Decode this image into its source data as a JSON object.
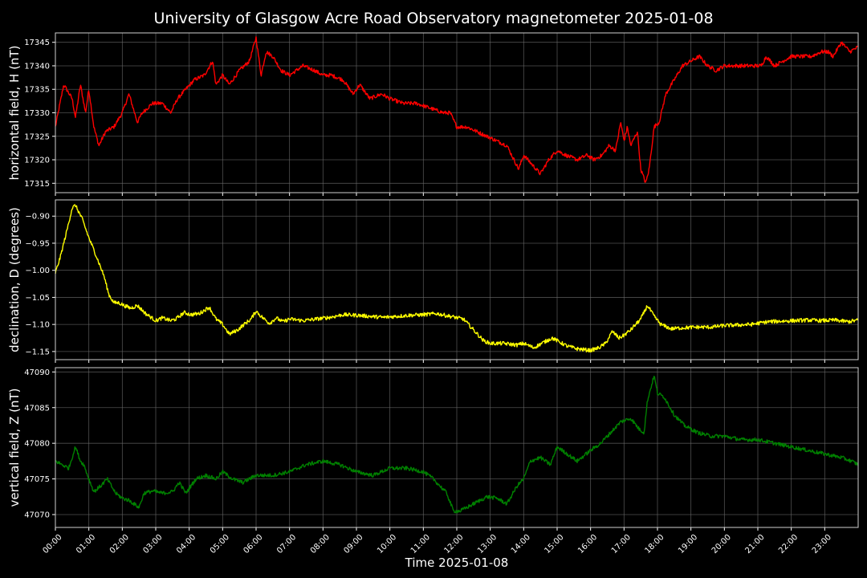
{
  "chart_data": {
    "type": "line",
    "title": "University of Glasgow Acre Road Observatory magnetometer 2025-01-08",
    "xlabel": "Time 2025-01-08",
    "x_unit": "hours",
    "xlim": [
      0,
      24
    ],
    "x_ticks": [
      "00:00",
      "01:00",
      "02:00",
      "03:00",
      "04:00",
      "05:00",
      "06:00",
      "07:00",
      "08:00",
      "09:00",
      "10:00",
      "11:00",
      "12:00",
      "13:00",
      "14:00",
      "15:00",
      "16:00",
      "17:00",
      "18:00",
      "19:00",
      "20:00",
      "21:00",
      "22:00",
      "23:00"
    ],
    "grid": true,
    "background": "#000000",
    "panels": [
      {
        "ylabel": "horizontal field, H (nT)",
        "color": "#ff0000",
        "ylim": [
          17313,
          17347
        ],
        "y_ticks": [
          17315,
          17320,
          17325,
          17330,
          17335,
          17340,
          17345
        ],
        "x": [
          0.0,
          0.25,
          0.5,
          0.6,
          0.75,
          0.9,
          1.0,
          1.15,
          1.3,
          1.5,
          1.75,
          2.0,
          2.2,
          2.45,
          2.6,
          2.9,
          3.2,
          3.45,
          3.65,
          3.9,
          4.15,
          4.45,
          4.7,
          4.8,
          5.0,
          5.2,
          5.5,
          5.8,
          6.0,
          6.15,
          6.3,
          6.5,
          6.75,
          7.0,
          7.4,
          7.75,
          8.0,
          8.25,
          8.6,
          8.9,
          9.1,
          9.4,
          9.75,
          10.0,
          10.4,
          10.8,
          11.2,
          11.6,
          11.8,
          12.0,
          12.3,
          12.6,
          12.9,
          13.2,
          13.5,
          13.85,
          14.0,
          14.25,
          14.5,
          14.75,
          15.0,
          15.25,
          15.6,
          15.9,
          16.1,
          16.35,
          16.55,
          16.75,
          16.9,
          17.0,
          17.1,
          17.2,
          17.4,
          17.5,
          17.65,
          17.75,
          17.9,
          18.05,
          18.25,
          18.5,
          18.75,
          19.0,
          19.25,
          19.5,
          19.75,
          20.0,
          20.3,
          20.6,
          20.9,
          21.1,
          21.25,
          21.5,
          21.75,
          22.0,
          22.3,
          22.6,
          22.9,
          23.1,
          23.25,
          23.5,
          23.75,
          24.0
        ],
        "values": [
          17327,
          17336,
          17333,
          17329,
          17336,
          17330,
          17335,
          17327,
          17323,
          17326,
          17327,
          17330,
          17334,
          17328,
          17330,
          17332,
          17332,
          17330,
          17333,
          17335,
          17337,
          17338,
          17341,
          17336,
          17338,
          17336,
          17339,
          17341,
          17346,
          17338,
          17343,
          17342,
          17339,
          17338,
          17340,
          17339,
          17338,
          17338,
          17337,
          17334,
          17336,
          17333,
          17334,
          17333,
          17332,
          17332,
          17331,
          17330,
          17330,
          17327,
          17327,
          17326,
          17325,
          17324,
          17323,
          17318,
          17321,
          17319,
          17317,
          17320,
          17322,
          17321,
          17320,
          17321,
          17320,
          17321,
          17323,
          17322,
          17328,
          17324,
          17327,
          17323,
          17326,
          17318,
          17315,
          17318,
          17327,
          17328,
          17334,
          17337,
          17340,
          17341,
          17342,
          17340,
          17339,
          17340,
          17340,
          17340,
          17340,
          17340,
          17342,
          17340,
          17341,
          17342,
          17342,
          17342,
          17343,
          17343,
          17342,
          17345,
          17343,
          17344
        ]
      },
      {
        "ylabel": "declination, D (degrees)",
        "color": "#ffff00",
        "ylim": [
          -1.165,
          -0.87
        ],
        "y_ticks": [
          -0.9,
          -0.95,
          -1.0,
          -1.05,
          -1.1,
          -1.15
        ],
        "y_tick_labels": [
          "−0.90",
          "−0.95",
          "−1.00",
          "−1.05",
          "−1.10",
          "−1.15"
        ],
        "x": [
          0.0,
          0.15,
          0.35,
          0.5,
          0.6,
          0.8,
          1.0,
          1.2,
          1.45,
          1.6,
          1.75,
          1.9,
          2.05,
          2.25,
          2.45,
          2.7,
          3.0,
          3.2,
          3.45,
          3.6,
          3.85,
          4.05,
          4.3,
          4.6,
          4.8,
          5.0,
          5.2,
          5.45,
          5.6,
          5.85,
          6.0,
          6.15,
          6.4,
          6.6,
          6.8,
          7.0,
          7.4,
          7.8,
          8.2,
          8.6,
          9.0,
          9.4,
          9.8,
          10.2,
          10.6,
          11.0,
          11.4,
          11.8,
          12.2,
          12.5,
          12.8,
          13.0,
          13.4,
          13.8,
          14.0,
          14.3,
          14.6,
          14.85,
          15.0,
          15.3,
          15.6,
          16.0,
          16.25,
          16.45,
          16.65,
          16.85,
          17.0,
          17.2,
          17.5,
          17.7,
          17.9,
          18.1,
          18.4,
          18.8,
          19.2,
          19.6,
          20.0,
          20.4,
          20.8,
          21.0,
          21.3,
          21.7,
          22.1,
          22.5,
          22.9,
          23.3,
          23.7,
          24.0
        ],
        "values": [
          -1.005,
          -0.975,
          -0.925,
          -0.885,
          -0.88,
          -0.905,
          -0.94,
          -0.97,
          -1.01,
          -1.045,
          -1.06,
          -1.06,
          -1.065,
          -1.07,
          -1.065,
          -1.08,
          -1.093,
          -1.088,
          -1.093,
          -1.09,
          -1.078,
          -1.082,
          -1.08,
          -1.068,
          -1.09,
          -1.1,
          -1.118,
          -1.11,
          -1.102,
          -1.09,
          -1.075,
          -1.085,
          -1.098,
          -1.088,
          -1.095,
          -1.09,
          -1.093,
          -1.09,
          -1.087,
          -1.082,
          -1.083,
          -1.085,
          -1.087,
          -1.085,
          -1.083,
          -1.082,
          -1.08,
          -1.085,
          -1.09,
          -1.11,
          -1.13,
          -1.135,
          -1.135,
          -1.138,
          -1.135,
          -1.143,
          -1.133,
          -1.125,
          -1.13,
          -1.14,
          -1.145,
          -1.148,
          -1.143,
          -1.135,
          -1.113,
          -1.125,
          -1.12,
          -1.11,
          -1.09,
          -1.065,
          -1.085,
          -1.1,
          -1.108,
          -1.106,
          -1.105,
          -1.105,
          -1.102,
          -1.101,
          -1.1,
          -1.098,
          -1.095,
          -1.094,
          -1.093,
          -1.092,
          -1.093,
          -1.092,
          -1.095,
          -1.092
        ]
      },
      {
        "ylabel": "vertical field, Z (nT)",
        "color": "#008000",
        "ylim": [
          47068.2,
          47090.6
        ],
        "y_ticks": [
          47070,
          47075,
          47080,
          47085,
          47090
        ],
        "x": [
          0.0,
          0.2,
          0.4,
          0.6,
          0.75,
          0.85,
          1.0,
          1.15,
          1.35,
          1.55,
          1.8,
          2.0,
          2.2,
          2.5,
          2.65,
          2.9,
          3.2,
          3.5,
          3.7,
          3.9,
          4.2,
          4.5,
          4.8,
          5.0,
          5.3,
          5.6,
          6.0,
          6.5,
          7.0,
          7.5,
          8.0,
          8.5,
          9.0,
          9.5,
          10.0,
          10.5,
          11.0,
          11.3,
          11.5,
          11.7,
          11.9,
          12.1,
          12.5,
          12.9,
          13.2,
          13.5,
          13.8,
          14.0,
          14.2,
          14.5,
          14.8,
          15.0,
          15.3,
          15.6,
          16.0,
          16.3,
          16.6,
          16.9,
          17.2,
          17.45,
          17.6,
          17.7,
          17.9,
          18.0,
          18.2,
          18.5,
          18.8,
          19.2,
          19.6,
          20.0,
          20.5,
          21.0,
          21.5,
          22.0,
          22.5,
          23.0,
          23.5,
          23.8,
          24.0
        ],
        "values": [
          47077.5,
          47077,
          47076.5,
          47079.5,
          47077.5,
          47077,
          47075,
          47073.2,
          47074,
          47075,
          47073,
          47072.3,
          47072,
          47071,
          47073,
          47073.3,
          47073,
          47073.2,
          47074.5,
          47073,
          47075,
          47075.5,
          47075,
          47076,
          47075,
          47074.5,
          47075.5,
          47075.5,
          47076,
          47077,
          47077.5,
          47077,
          47076,
          47075.5,
          47076.5,
          47076.5,
          47076,
          47075,
          47074,
          47073,
          47070.5,
          47070.5,
          47071.5,
          47072.5,
          47072.3,
          47071.5,
          47074,
          47075,
          47077.5,
          47078,
          47077,
          47079.5,
          47078.5,
          47077.5,
          47079,
          47080,
          47081.5,
          47083,
          47083.5,
          47082,
          47081.5,
          47086,
          47089.5,
          47087,
          47086.5,
          47084,
          47082.5,
          47081.5,
          47081,
          47081,
          47080.5,
          47080.5,
          47080,
          47079.5,
          47079,
          47078.5,
          47078,
          47077.5,
          47077
        ]
      }
    ]
  }
}
